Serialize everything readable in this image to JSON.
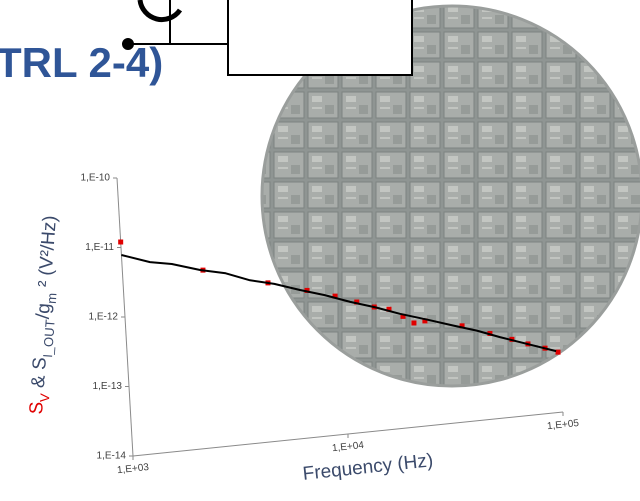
{
  "heading": "TRL 2-4)",
  "chart_data": {
    "type": "line",
    "ylabel_parts": [
      {
        "text": "S",
        "color": "#e00000"
      },
      {
        "text": "V",
        "color": "#e00000",
        "sub": true
      },
      {
        "text": " & S"
      },
      {
        "text": "I_OUT",
        "sub": true
      },
      {
        "text": "/g"
      },
      {
        "text": "m",
        "sub": true
      },
      {
        "text": " ² (V²/Hz)"
      }
    ],
    "xlabel": "Frequency (Hz)",
    "xscale": "log",
    "yscale": "log",
    "xlim": [
      1000,
      100000
    ],
    "xticks": [
      {
        "value": 1000,
        "label": "1,E+03"
      },
      {
        "value": 10000,
        "label": "1,E+04"
      },
      {
        "value": 100000,
        "label": "1,E+05"
      }
    ],
    "ylim": [
      1e-14,
      1e-10
    ],
    "yticks": [
      {
        "value": 1e-14,
        "label": "1,E-14"
      },
      {
        "value": 1e-13,
        "label": "1,E-13"
      },
      {
        "value": 1e-12,
        "label": "1,E-12"
      },
      {
        "value": 1e-11,
        "label": "1,E-11"
      },
      {
        "value": 1e-10,
        "label": "1,E-10"
      }
    ],
    "grid": false,
    "series": [
      {
        "type": "scatter",
        "color": "#e00000",
        "x": [
          1000,
          2360,
          4680,
          7060,
          9480,
          11900,
          14300,
          16700,
          19300,
          21600,
          24300,
          36000,
          48200,
          60700,
          71800,
          85900,
          98400
        ],
        "values": [
          1.2e-11,
          3.6e-12,
          1.9e-12,
          1.3e-12,
          9.8e-13,
          7.5e-13,
          6e-13,
          5.3e-13,
          4e-13,
          3.1e-13,
          3.2e-13,
          2.4e-13,
          1.7e-13,
          1.3e-13,
          1.06e-13,
          8.7e-14,
          7.3e-14
        ]
      },
      {
        "type": "line",
        "color": "#000000",
        "x": [
          1000,
          1350,
          1700,
          2290,
          3000,
          3870,
          5000,
          6550,
          8500,
          11100,
          14500,
          18700,
          25000,
          32700,
          42000,
          53500,
          72000,
          96400
        ],
        "values": [
          7.8e-12,
          5.6e-12,
          4.9e-12,
          3.65e-12,
          3e-12,
          2.2e-12,
          1.8e-12,
          1.35e-12,
          1.05e-12,
          7.7e-13,
          5.9e-13,
          4.4e-13,
          3.3e-13,
          2.5e-13,
          1.95e-13,
          1.46e-13,
          1.05e-13,
          7.6e-14
        ]
      }
    ]
  }
}
